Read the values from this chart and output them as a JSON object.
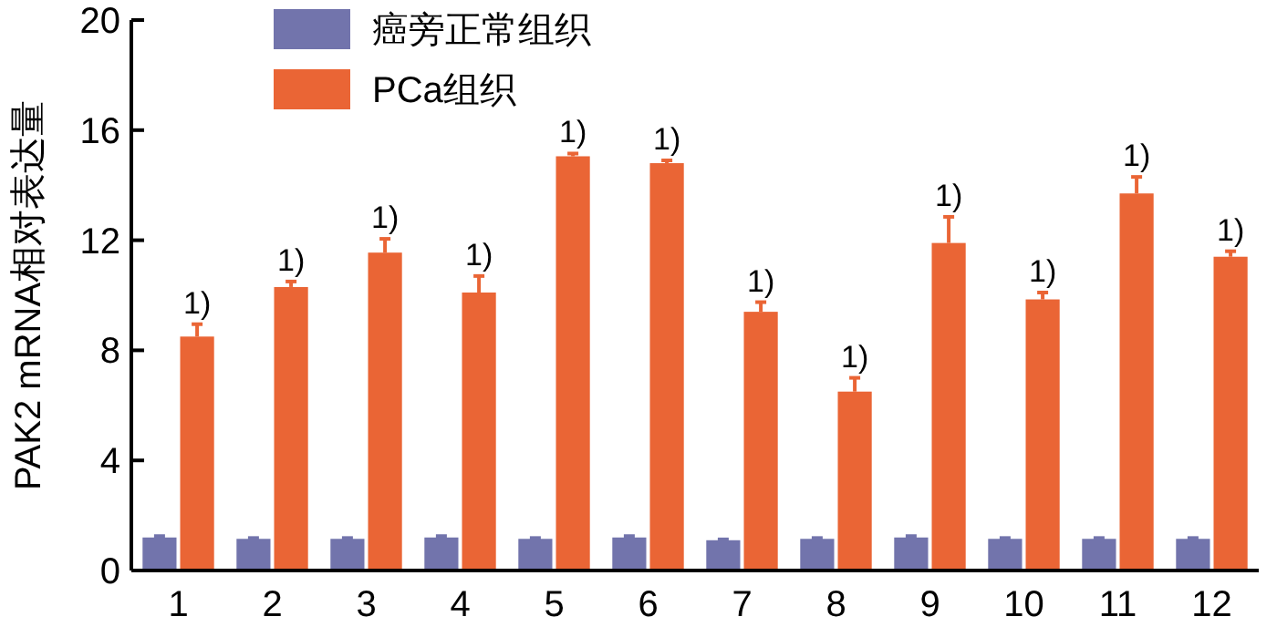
{
  "chart_data": {
    "type": "bar",
    "ylabel": "PAK2 mRNA相对表达量",
    "categories": [
      "1",
      "2",
      "3",
      "4",
      "5",
      "6",
      "7",
      "8",
      "9",
      "10",
      "11",
      "12"
    ],
    "series": [
      {
        "name": "癌旁正常组织",
        "color": "#7274ac",
        "values": [
          1.2,
          1.15,
          1.15,
          1.2,
          1.15,
          1.2,
          1.1,
          1.15,
          1.2,
          1.15,
          1.15,
          1.15
        ],
        "errors": [
          0.05,
          0.03,
          0.03,
          0.05,
          0.03,
          0.05,
          0.03,
          0.03,
          0.05,
          0.03,
          0.03,
          0.03
        ]
      },
      {
        "name": "PCa组织",
        "color": "#ea6535",
        "values": [
          8.5,
          10.3,
          11.55,
          10.1,
          15.05,
          14.8,
          9.4,
          6.5,
          11.9,
          9.85,
          13.7,
          11.4
        ],
        "errors": [
          0.45,
          0.2,
          0.5,
          0.6,
          0.1,
          0.1,
          0.35,
          0.5,
          0.95,
          0.25,
          0.6,
          0.2
        ]
      }
    ],
    "ylim": [
      0,
      20
    ],
    "yticks": [
      0,
      4,
      8,
      12,
      16,
      20
    ],
    "legend": "top left",
    "annotations": [
      {
        "text": "1)",
        "x": "1",
        "y": 8.5
      },
      {
        "text": "1)",
        "x": "2",
        "y": 10.3
      },
      {
        "text": "1)",
        "x": "3",
        "y": 11.55
      },
      {
        "text": "1)",
        "x": "4",
        "y": 10.1
      },
      {
        "text": "1)",
        "x": "5",
        "y": 15.05
      },
      {
        "text": "1)",
        "x": "6",
        "y": 14.8
      },
      {
        "text": "1)",
        "x": "7",
        "y": 9.4
      },
      {
        "text": "1)",
        "x": "8",
        "y": 6.5
      },
      {
        "text": "1)",
        "x": "9",
        "y": 11.9
      },
      {
        "text": "1)",
        "x": "10",
        "y": 9.85
      },
      {
        "text": "1)",
        "x": "11",
        "y": 13.7
      },
      {
        "text": "1)",
        "x": "12",
        "y": 11.4
      }
    ]
  }
}
